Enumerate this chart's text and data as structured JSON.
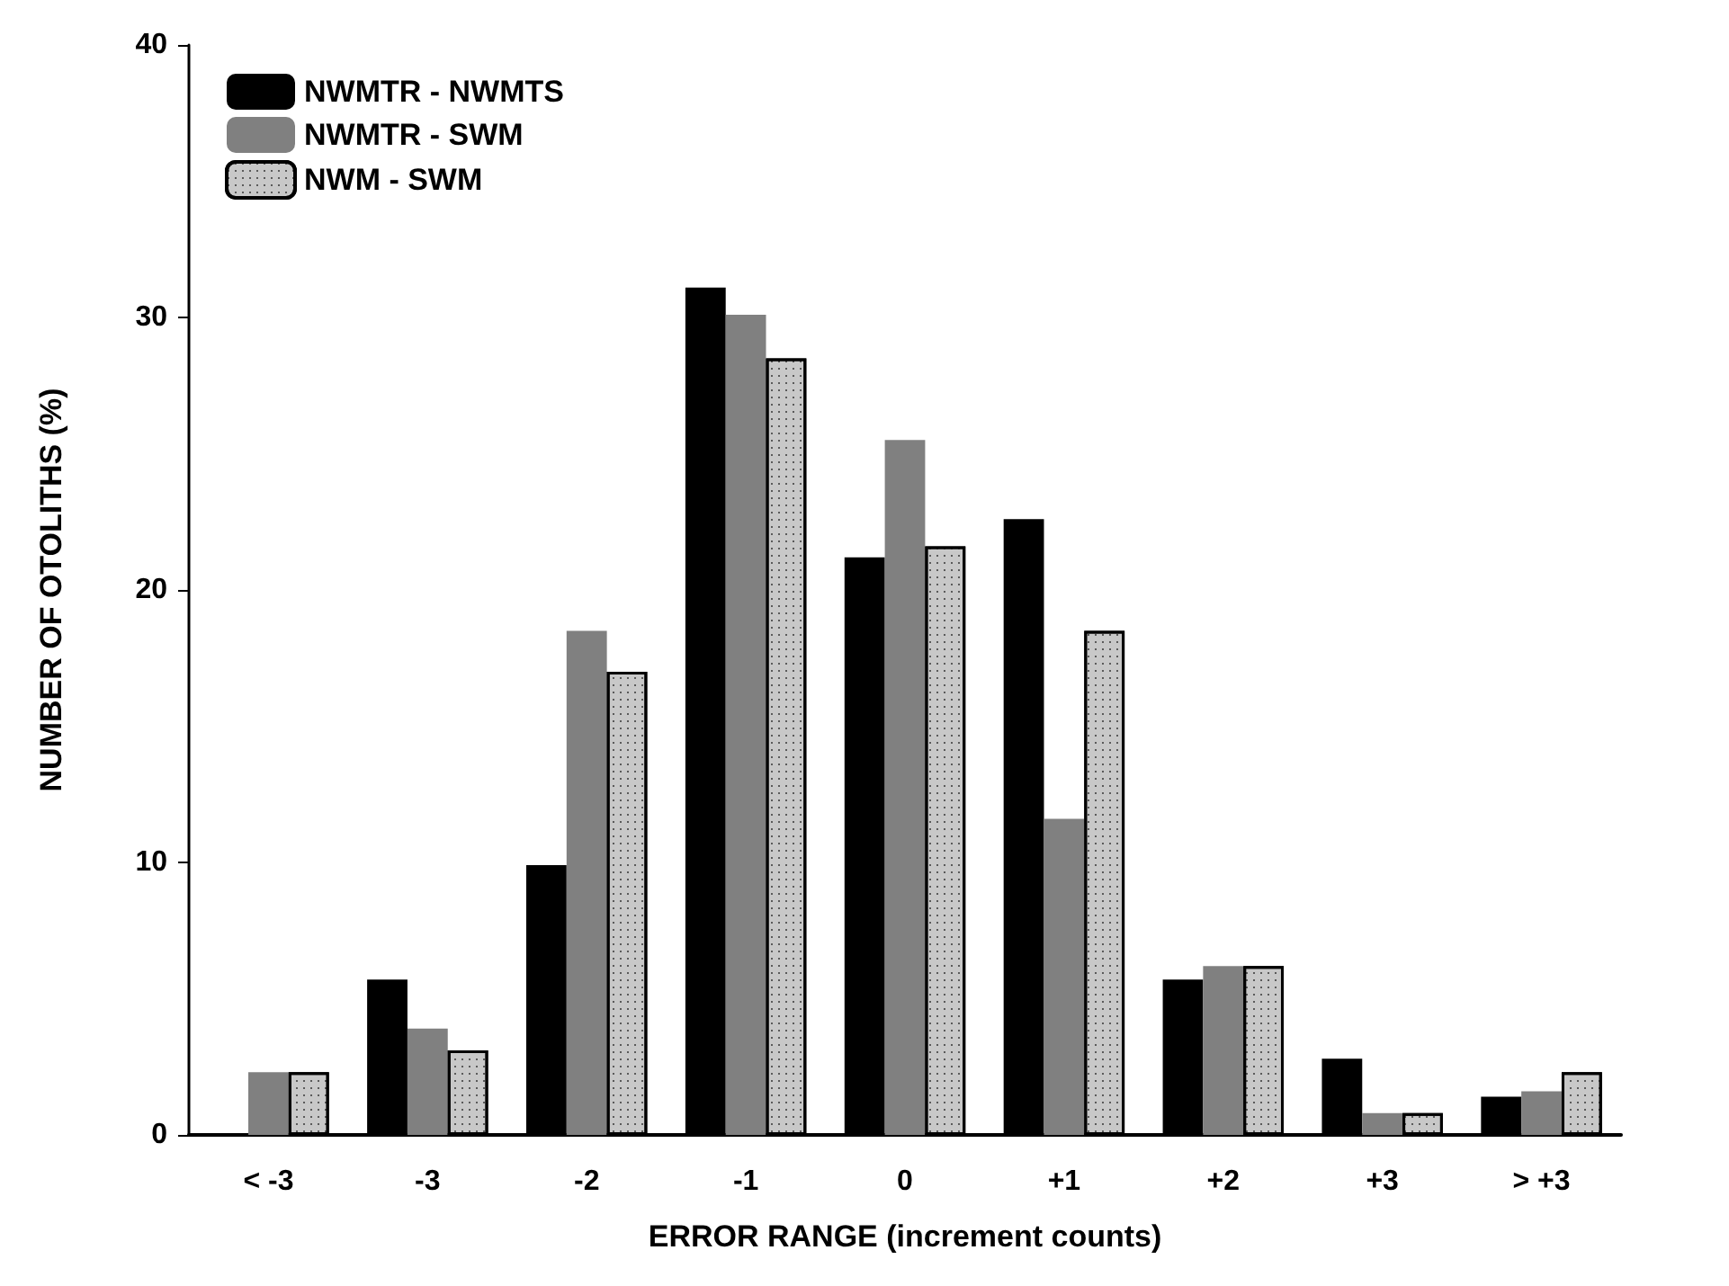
{
  "chart_data": {
    "type": "bar",
    "categories": [
      "< -3",
      "-3",
      "-2",
      "-1",
      "0",
      "+1",
      "+2",
      "+3",
      "> +3"
    ],
    "series": [
      {
        "name": "NWMTR - NWMTS",
        "color": "#000000",
        "values": [
          0,
          5.7,
          9.9,
          31.1,
          21.2,
          22.6,
          5.7,
          2.8,
          1.4
        ]
      },
      {
        "name": "NWMTR - SWM",
        "color": "#808080",
        "values": [
          2.3,
          3.9,
          18.5,
          30.1,
          25.5,
          11.6,
          6.2,
          0.8,
          1.6
        ]
      },
      {
        "name": "NWM - SWM",
        "color": "#c8c8c8",
        "values": [
          2.3,
          3.1,
          17.0,
          28.5,
          21.6,
          18.5,
          6.2,
          0.8,
          2.3
        ]
      }
    ],
    "xlabel": "ERROR RANGE (increment counts)",
    "ylabel": "NUMBER OF OTOLITHS (%)",
    "ylim": [
      0,
      40
    ],
    "yticks": [
      0,
      10,
      20,
      30,
      40
    ],
    "grid": false,
    "legend": "top left"
  }
}
